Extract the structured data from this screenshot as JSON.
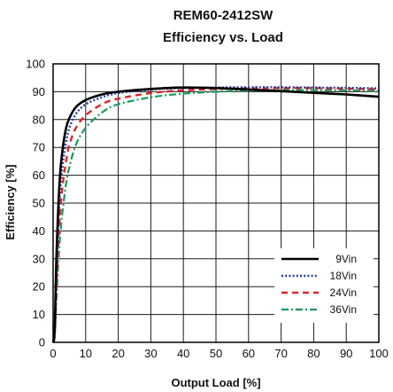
{
  "chart_data": {
    "type": "line",
    "title": "REM60-2412SW",
    "subtitle": "Efficiency vs. Load",
    "xlabel": "Output Load [%]",
    "ylabel": "Efficiency [%]",
    "xlim": [
      0,
      100
    ],
    "ylim": [
      0,
      100
    ],
    "xticks": [
      0,
      10,
      20,
      30,
      40,
      50,
      60,
      70,
      80,
      90,
      100
    ],
    "yticks": [
      0,
      10,
      20,
      30,
      40,
      50,
      60,
      70,
      80,
      90,
      100
    ],
    "grid": true,
    "legend_position": "bottom-right",
    "series": [
      {
        "name": "9Vin",
        "color": "#000000",
        "dash": "solid",
        "x": [
          0.5,
          1,
          2,
          3,
          4,
          5,
          7,
          10,
          15,
          20,
          30,
          40,
          50,
          60,
          70,
          80,
          90,
          100
        ],
        "y": [
          5,
          30,
          58,
          70,
          77,
          80.5,
          84.5,
          87,
          89,
          90,
          91,
          91.5,
          91.3,
          90.8,
          90.2,
          89.6,
          89,
          88.2
        ]
      },
      {
        "name": "18Vin",
        "color": "#1f3f9f",
        "dash": "dotted",
        "x": [
          0.5,
          1,
          2,
          3,
          4,
          5,
          7,
          10,
          15,
          20,
          30,
          40,
          50,
          60,
          70,
          80,
          90,
          100
        ],
        "y": [
          4,
          25,
          52,
          64,
          72,
          77,
          82,
          85.5,
          88,
          89.5,
          90.8,
          91.3,
          91.5,
          91.6,
          91.6,
          91.5,
          91.4,
          91.2
        ]
      },
      {
        "name": "24Vin",
        "color": "#e0242a",
        "dash": "dashed",
        "x": [
          0.5,
          1,
          2,
          3,
          4,
          5,
          7,
          10,
          15,
          20,
          30,
          40,
          50,
          60,
          70,
          80,
          90,
          100
        ],
        "y": [
          3,
          20,
          44,
          57,
          65,
          71,
          77,
          81.5,
          85.5,
          87.5,
          89.5,
          90.5,
          91,
          91.2,
          91.3,
          91.3,
          91.1,
          90.9
        ]
      },
      {
        "name": "36Vin",
        "color": "#1c9a5c",
        "dash": "dashdot",
        "x": [
          0.5,
          1,
          2,
          3,
          4,
          5,
          7,
          10,
          15,
          20,
          30,
          40,
          50,
          60,
          70,
          80,
          90,
          100
        ],
        "y": [
          2,
          15,
          36,
          48,
          57,
          63,
          71,
          77,
          82.5,
          85.5,
          88,
          89.3,
          90,
          90.4,
          90.6,
          90.6,
          90.5,
          90.3
        ]
      }
    ]
  }
}
